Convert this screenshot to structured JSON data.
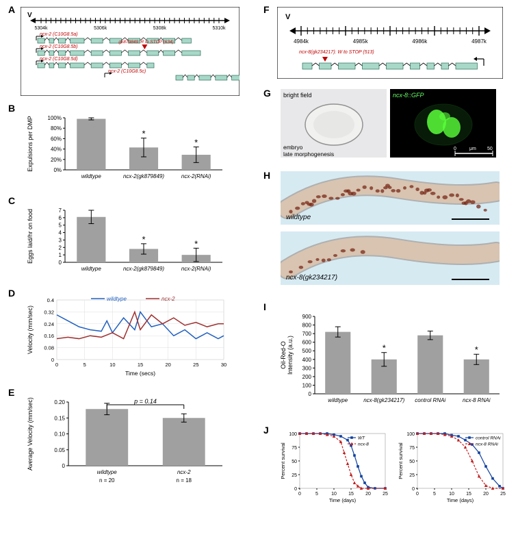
{
  "panelA": {
    "label": "A",
    "chromosome": "V",
    "scale_ticks": [
      "5304k",
      "5306k",
      "5308k",
      "5310k"
    ],
    "transcripts": [
      {
        "name": "ncx-2 (C10G8.5a)",
        "boxes": [
          [
            0,
            6
          ],
          [
            10,
            14
          ],
          [
            18,
            24
          ],
          [
            28,
            40
          ],
          [
            46,
            56
          ],
          [
            62,
            72
          ],
          [
            78,
            88
          ],
          [
            94,
            104
          ],
          [
            108,
            118
          ],
          [
            124,
            132
          ]
        ]
      },
      {
        "name": "ncx-2 (C10G8.5b)",
        "boxes": [
          [
            0,
            6
          ],
          [
            10,
            14
          ],
          [
            18,
            24
          ],
          [
            28,
            40
          ],
          [
            46,
            56
          ],
          [
            62,
            72
          ],
          [
            78,
            88
          ],
          [
            94,
            104
          ],
          [
            108,
            118
          ],
          [
            124,
            140
          ]
        ]
      },
      {
        "name": "ncx-2 (C10G8.5d)",
        "boxes": [
          [
            0,
            6
          ],
          [
            10,
            14
          ],
          [
            18,
            24
          ],
          [
            28,
            40
          ],
          [
            46,
            56
          ],
          [
            62,
            72
          ],
          [
            78,
            88
          ],
          [
            94,
            100
          ]
        ]
      },
      {
        "name": "ncx-2 (C10G8.5c)",
        "boxes": [
          [
            60,
            66
          ],
          [
            70,
            76
          ],
          [
            80,
            90
          ],
          [
            94,
            104
          ],
          [
            108,
            118
          ],
          [
            124,
            132
          ]
        ]
      }
    ],
    "mutation": "gk879849: R to STOP (634)"
  },
  "panelB": {
    "label": "B",
    "ylabel": "Expulsions per DMP",
    "yticks": [
      "0%",
      "20%",
      "40%",
      "60%",
      "80%",
      "100%"
    ],
    "ylim": [
      0,
      100
    ],
    "categories": [
      "wildtype",
      "ncx-2(gk879849)",
      "ncx-2(RNAi)"
    ],
    "values": [
      98,
      43,
      29
    ],
    "errors": [
      2,
      18,
      15
    ],
    "stars": [
      false,
      true,
      true
    ],
    "bar_color": "#a0a0a0"
  },
  "panelC": {
    "label": "C",
    "ylabel": "Eggs laid/hr on food",
    "yticks": [
      "0",
      "1",
      "2",
      "3",
      "4",
      "5",
      "6",
      "7"
    ],
    "ylim": [
      0,
      7
    ],
    "categories": [
      "wildtype",
      "ncx-2(gk879849)",
      "ncx-2(RNAi)"
    ],
    "values": [
      6.1,
      1.8,
      1.0
    ],
    "errors": [
      0.9,
      0.7,
      0.9
    ],
    "stars": [
      false,
      true,
      true
    ],
    "bar_color": "#a0a0a0"
  },
  "panelD": {
    "label": "D",
    "ylabel": "Velocity (mm/sec)",
    "xlabel": "Time (secs)",
    "xticks": [
      "0",
      "5",
      "10",
      "15",
      "20",
      "25",
      "30"
    ],
    "yticks": [
      "0",
      "0.08",
      "0.16",
      "0.24",
      "0.32",
      "0.4"
    ],
    "xlim": [
      0,
      30
    ],
    "ylim": [
      0,
      0.4
    ],
    "series": [
      {
        "name": "wildtype",
        "color": "#2060c0",
        "data": [
          [
            0,
            0.3
          ],
          [
            2,
            0.26
          ],
          [
            4,
            0.22
          ],
          [
            6,
            0.2
          ],
          [
            8,
            0.19
          ],
          [
            9,
            0.26
          ],
          [
            10,
            0.18
          ],
          [
            12,
            0.28
          ],
          [
            14,
            0.2
          ],
          [
            15,
            0.32
          ],
          [
            17,
            0.22
          ],
          [
            19,
            0.24
          ],
          [
            21,
            0.16
          ],
          [
            23,
            0.2
          ],
          [
            25,
            0.14
          ],
          [
            27,
            0.18
          ],
          [
            29,
            0.14
          ],
          [
            30,
            0.16
          ]
        ]
      },
      {
        "name": "ncx-2",
        "color": "#a03030",
        "data": [
          [
            0,
            0.14
          ],
          [
            2,
            0.15
          ],
          [
            4,
            0.14
          ],
          [
            6,
            0.16
          ],
          [
            8,
            0.15
          ],
          [
            10,
            0.18
          ],
          [
            12,
            0.14
          ],
          [
            14,
            0.32
          ],
          [
            15,
            0.2
          ],
          [
            17,
            0.3
          ],
          [
            19,
            0.24
          ],
          [
            21,
            0.28
          ],
          [
            23,
            0.23
          ],
          [
            25,
            0.25
          ],
          [
            27,
            0.22
          ],
          [
            29,
            0.24
          ],
          [
            30,
            0.24
          ]
        ]
      }
    ]
  },
  "panelE": {
    "label": "E",
    "ylabel": "Average Velocity (mm/sec)",
    "yticks": [
      "0",
      "0.05",
      "0.10",
      "0.15",
      "0.20"
    ],
    "ylim": [
      0,
      0.2
    ],
    "categories": [
      "wildtype",
      "ncx-2"
    ],
    "ns": [
      "n = 20",
      "n = 18"
    ],
    "values": [
      0.178,
      0.15
    ],
    "errors": [
      0.018,
      0.013
    ],
    "pvalue": "p = 0.14",
    "bar_color": "#a0a0a0"
  },
  "panelF": {
    "label": "F",
    "chromosome": "V",
    "scale_ticks": [
      "4984k",
      "4985k",
      "4986k",
      "4987k"
    ],
    "mutation": "ncx-8(gk234217): W to STOP (513)",
    "boxes": [
      [
        4,
        12
      ],
      [
        18,
        28
      ],
      [
        34,
        48
      ],
      [
        54,
        68
      ],
      [
        74,
        88
      ],
      [
        94,
        102
      ],
      [
        108,
        114
      ],
      [
        120,
        126
      ],
      [
        132,
        150
      ]
    ]
  },
  "panelG": {
    "label": "G",
    "left_caption_top": "bright field",
    "left_caption_bottom_1": "embryo",
    "left_caption_bottom_2": "late morphogenesis",
    "right_caption": "ncx-8::GFP",
    "scalebar": "μm",
    "scalebar_from": "0",
    "scalebar_to": "50",
    "bg_left": "#e8e8ea",
    "bg_right": "#000000",
    "gfp_color": "#5aff3a"
  },
  "panelH": {
    "label": "H",
    "top_label": "wildtype",
    "bottom_label": "ncx-8(gk234217)",
    "bg": "#d6eaf2",
    "worm_body": "#d8c4b0",
    "stain": "#7a2a1a"
  },
  "panelI": {
    "label": "I",
    "ylabel": "Oil-Red-O\nIntensity (a.u.)",
    "yticks": [
      "0",
      "100",
      "200",
      "300",
      "400",
      "500",
      "600",
      "700",
      "800",
      "900"
    ],
    "ylim": [
      0,
      900
    ],
    "categories": [
      "wildtype",
      "ncx-8(gk234217)",
      "control RNAi",
      "ncx-8 RNAi"
    ],
    "values": [
      720,
      400,
      680,
      400
    ],
    "errors": [
      60,
      80,
      50,
      60
    ],
    "stars": [
      false,
      true,
      false,
      true
    ],
    "bar_color": "#a0a0a0"
  },
  "panelJ": {
    "label": "J",
    "ylabel": "Percent survival",
    "xlabel": "Time (days)",
    "xticks": [
      "0",
      "5",
      "10",
      "15",
      "20",
      "25"
    ],
    "yticks": [
      "0",
      "25",
      "50",
      "75",
      "100"
    ],
    "xlim": [
      0,
      25
    ],
    "ylim": [
      0,
      100
    ],
    "left": {
      "series": [
        {
          "name": "WT",
          "color": "#1040a0",
          "dash": false,
          "data": [
            [
              0,
              100
            ],
            [
              2,
              100
            ],
            [
              4,
              100
            ],
            [
              6,
              100
            ],
            [
              8,
              100
            ],
            [
              10,
              98
            ],
            [
              12,
              95
            ],
            [
              14,
              88
            ],
            [
              15,
              78
            ],
            [
              16,
              60
            ],
            [
              17,
              40
            ],
            [
              18,
              22
            ],
            [
              19,
              10
            ],
            [
              20,
              2
            ],
            [
              22,
              0
            ],
            [
              25,
              0
            ]
          ]
        },
        {
          "name": "ncx-8",
          "color": "#c02020",
          "dash": true,
          "data": [
            [
              0,
              100
            ],
            [
              2,
              100
            ],
            [
              4,
              100
            ],
            [
              6,
              100
            ],
            [
              8,
              98
            ],
            [
              10,
              95
            ],
            [
              12,
              85
            ],
            [
              13,
              65
            ],
            [
              14,
              45
            ],
            [
              15,
              25
            ],
            [
              16,
              10
            ],
            [
              17,
              4
            ],
            [
              18,
              0
            ],
            [
              20,
              0
            ],
            [
              25,
              0
            ]
          ]
        }
      ]
    },
    "right": {
      "series": [
        {
          "name": "control RNAi",
          "color": "#1040a0",
          "dash": false,
          "data": [
            [
              0,
              100
            ],
            [
              2,
              100
            ],
            [
              4,
              100
            ],
            [
              6,
              100
            ],
            [
              8,
              100
            ],
            [
              10,
              97
            ],
            [
              12,
              95
            ],
            [
              14,
              88
            ],
            [
              16,
              80
            ],
            [
              18,
              65
            ],
            [
              20,
              40
            ],
            [
              22,
              18
            ],
            [
              24,
              4
            ],
            [
              25,
              0
            ]
          ]
        },
        {
          "name": "ncx-8 RNAi",
          "color": "#c02020",
          "dash": true,
          "data": [
            [
              0,
              100
            ],
            [
              2,
              100
            ],
            [
              4,
              100
            ],
            [
              6,
              100
            ],
            [
              8,
              98
            ],
            [
              10,
              95
            ],
            [
              12,
              88
            ],
            [
              14,
              75
            ],
            [
              16,
              50
            ],
            [
              18,
              22
            ],
            [
              20,
              5
            ],
            [
              22,
              0
            ],
            [
              25,
              0
            ]
          ]
        }
      ]
    }
  }
}
